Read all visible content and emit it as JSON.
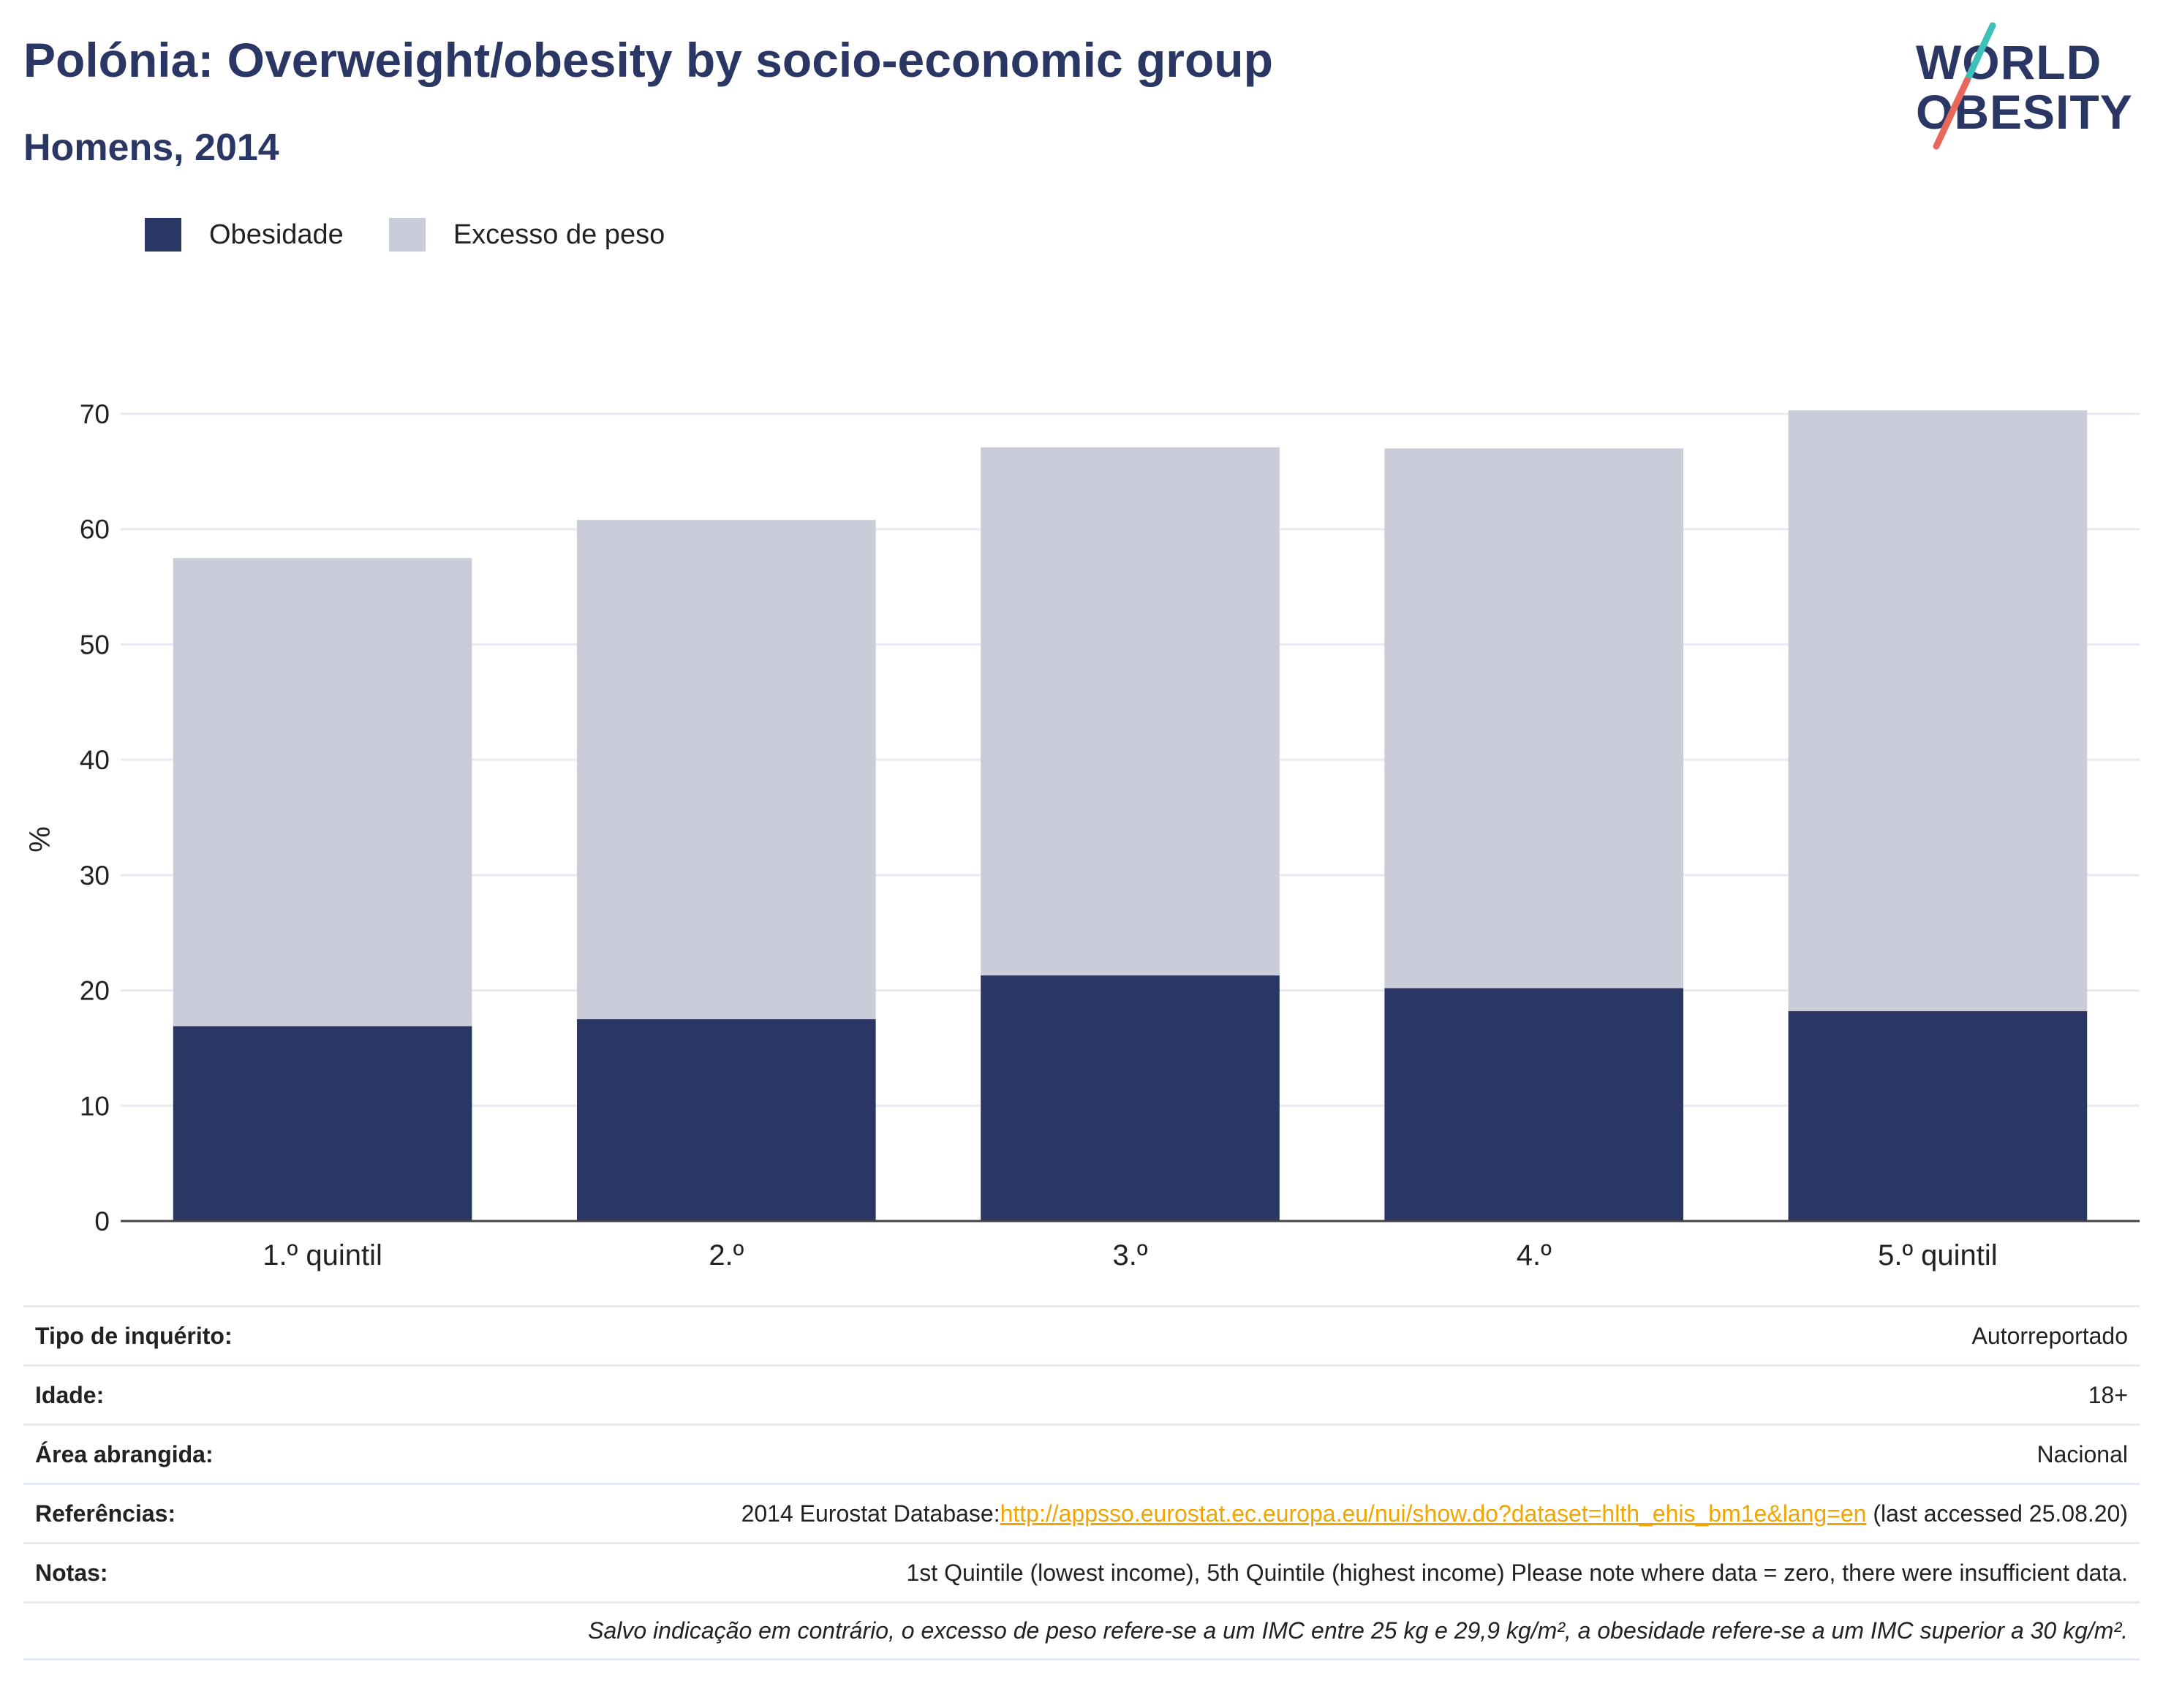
{
  "header": {
    "title": "Polónia: Overweight/obesity by socio-economic group",
    "subtitle": "Homens, 2014"
  },
  "logo": {
    "line1": "WORLD",
    "line2": "OBESITY"
  },
  "legend": {
    "items": [
      {
        "label": "Obesidade",
        "color": "#2a3663"
      },
      {
        "label": "Excesso de peso",
        "color": "#cacdd9"
      }
    ]
  },
  "chart_data": {
    "type": "bar",
    "stacked": true,
    "categories": [
      "1.º quintil",
      "2.º",
      "3.º",
      "4.º",
      "5.º quintil"
    ],
    "series": [
      {
        "name": "Obesidade",
        "color": "#2a3663",
        "values": [
          16.9,
          17.5,
          21.3,
          20.2,
          18.2
        ]
      },
      {
        "name": "Excesso de peso",
        "color": "#cacdd9",
        "values": [
          40.6,
          43.3,
          45.8,
          46.8,
          52.1
        ]
      }
    ],
    "ylabel": "%",
    "ylim": [
      0,
      70
    ],
    "yticks": [
      0,
      10,
      20,
      30,
      40,
      50,
      60,
      70
    ],
    "grid": true,
    "legend_position": "top-left"
  },
  "info": {
    "rows": [
      {
        "key": "Tipo de inquérito:",
        "value": "Autorreportado"
      },
      {
        "key": "Idade:",
        "value": "18+"
      },
      {
        "key": "Área abrangida:",
        "value": "Nacional"
      }
    ],
    "references": {
      "key": "Referências:",
      "prefix": "2014 Eurostat Database:",
      "link": "http://appsso.eurostat.ec.europa.eu/nui/show.do?dataset=hlth_ehis_bm1e&lang=en",
      "suffix": " (last accessed 25.08.20)"
    },
    "notes": {
      "key": "Notas:",
      "value": "1st Quintile (lowest income), 5th Quintile (highest income) Please note where data = zero, there were insufficient data."
    },
    "footnote": "Salvo indicação em contrário, o excesso de peso refere-se a um IMC entre 25 kg e 29,9 kg/m², a obesidade refere-se a um IMC superior a 30 kg/m²."
  }
}
